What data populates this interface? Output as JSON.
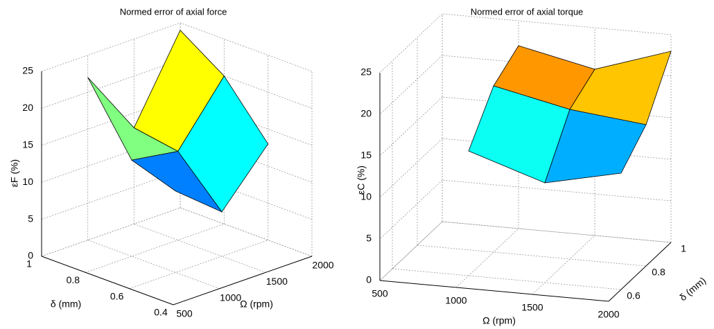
{
  "chart_data": [
    {
      "type": "surface3d",
      "title": "Normed error of axial force",
      "xlabel": "Ω (rpm)",
      "ylabel": "δ (mm)",
      "zlabel": "εF (%)",
      "x": [
        1000,
        1500,
        2000
      ],
      "y": [
        0.6,
        0.8,
        1.0
      ],
      "z": [
        [
          11,
          6,
          13
        ],
        [
          13,
          12,
          20
        ],
        [
          22,
          13,
          24
        ]
      ],
      "xlim": [
        500,
        2000
      ],
      "ylim": [
        0.4,
        1
      ],
      "zlim": [
        0,
        25
      ],
      "xticks": [
        500,
        1000,
        1500,
        2000
      ],
      "yticks": [
        0.4,
        0.6,
        0.8,
        1
      ],
      "zticks": [
        0,
        5,
        10,
        15,
        20,
        25
      ],
      "grid": true,
      "colormap": "jet"
    },
    {
      "type": "surface3d",
      "title": "Normed error of axial torque",
      "xlabel": "Ω (rpm)",
      "ylabel": "δ (mm)",
      "zlabel": "εC (%)",
      "x": [
        1000,
        1500,
        2000
      ],
      "y": [
        0.6,
        0.8,
        1.0
      ],
      "z": [
        [
          15,
          12,
          14
        ],
        [
          20,
          18,
          17
        ],
        [
          22,
          20,
          23
        ]
      ],
      "xlim": [
        500,
        2000
      ],
      "ylim": [
        0.5,
        1
      ],
      "zlim": [
        0,
        25
      ],
      "xticks": [
        500,
        1000,
        1500,
        2000
      ],
      "yticks": [
        0.6,
        0.8,
        1
      ],
      "zticks": [
        0,
        5,
        10,
        15,
        20,
        25
      ],
      "grid": true,
      "colormap": "jet"
    }
  ]
}
